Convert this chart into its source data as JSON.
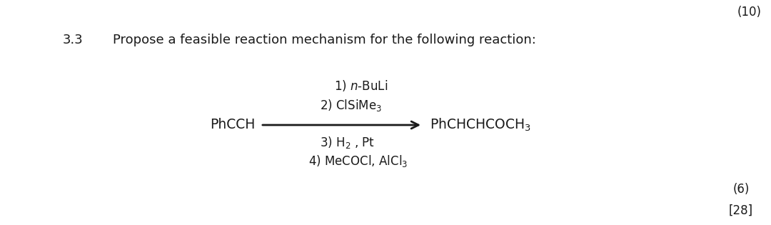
{
  "background_color": "#ffffff",
  "title_number": "3.3",
  "title_text": "Propose a feasible reaction mechanism for the following reaction:",
  "text_color": "#1a1a1a",
  "arrow_color": "#1a1a1a",
  "reactant": "PhCCH",
  "product": "PhCHCHCOCH$_3$",
  "corner_text": "(10)",
  "footnote_6": "(6)",
  "footnote_28": "[28]",
  "fontsize_title": 13.0,
  "fontsize_steps": 12.0,
  "fontsize_chem": 13.5
}
